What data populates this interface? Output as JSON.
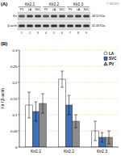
{
  "panel_a": {
    "label": "(A)",
    "watermark": "© WILEY",
    "groups": [
      {
        "name": "Kir2.1",
        "lanes": [
          "PV",
          "LA",
          "SVC"
        ]
      },
      {
        "name": "Kir2.2",
        "lanes": [
          "PV",
          "LA",
          "SVC"
        ]
      },
      {
        "name": "Kir2.3",
        "lanes": [
          "PV",
          "LA",
          "SVC"
        ]
      }
    ],
    "lane_numbers": [
      "1",
      "2",
      "3",
      "4",
      "5",
      "6",
      "7",
      "8",
      "9"
    ],
    "bands": [
      {
        "name": "Kir",
        "size": "48-52 KDa"
      },
      {
        "name": "β-actin",
        "size": "42-43 KDa"
      }
    ]
  },
  "chart_data": {
    "type": "bar",
    "panel_label": "(B)",
    "y_label": "Kir / β-actin",
    "categories": [
      "Kir2.1",
      "Kir2.2",
      "Kir2.3"
    ],
    "series": [
      {
        "name": "LA",
        "color": "#ffffff",
        "marker": "circle",
        "values": [
          0.13,
          0.21,
          0.05
        ],
        "errors": [
          0.04,
          0.025,
          0.03
        ]
      },
      {
        "name": "SVC",
        "color": "#3f6fb5",
        "marker": "square",
        "values": [
          0.11,
          0.13,
          0.03
        ],
        "errors": [
          0.03,
          0.03,
          0.015
        ]
      },
      {
        "name": "PV",
        "color": "#8c8c8c",
        "marker": "triangle",
        "values": [
          0.135,
          0.08,
          0.03
        ],
        "errors": [
          0.03,
          0.02,
          0.02
        ]
      }
    ],
    "ylim": [
      0,
      0.3
    ],
    "yticks": [
      0,
      0.05,
      0.1,
      0.15,
      0.2,
      0.25,
      0.3
    ],
    "grid": true,
    "legend": "upper right"
  }
}
